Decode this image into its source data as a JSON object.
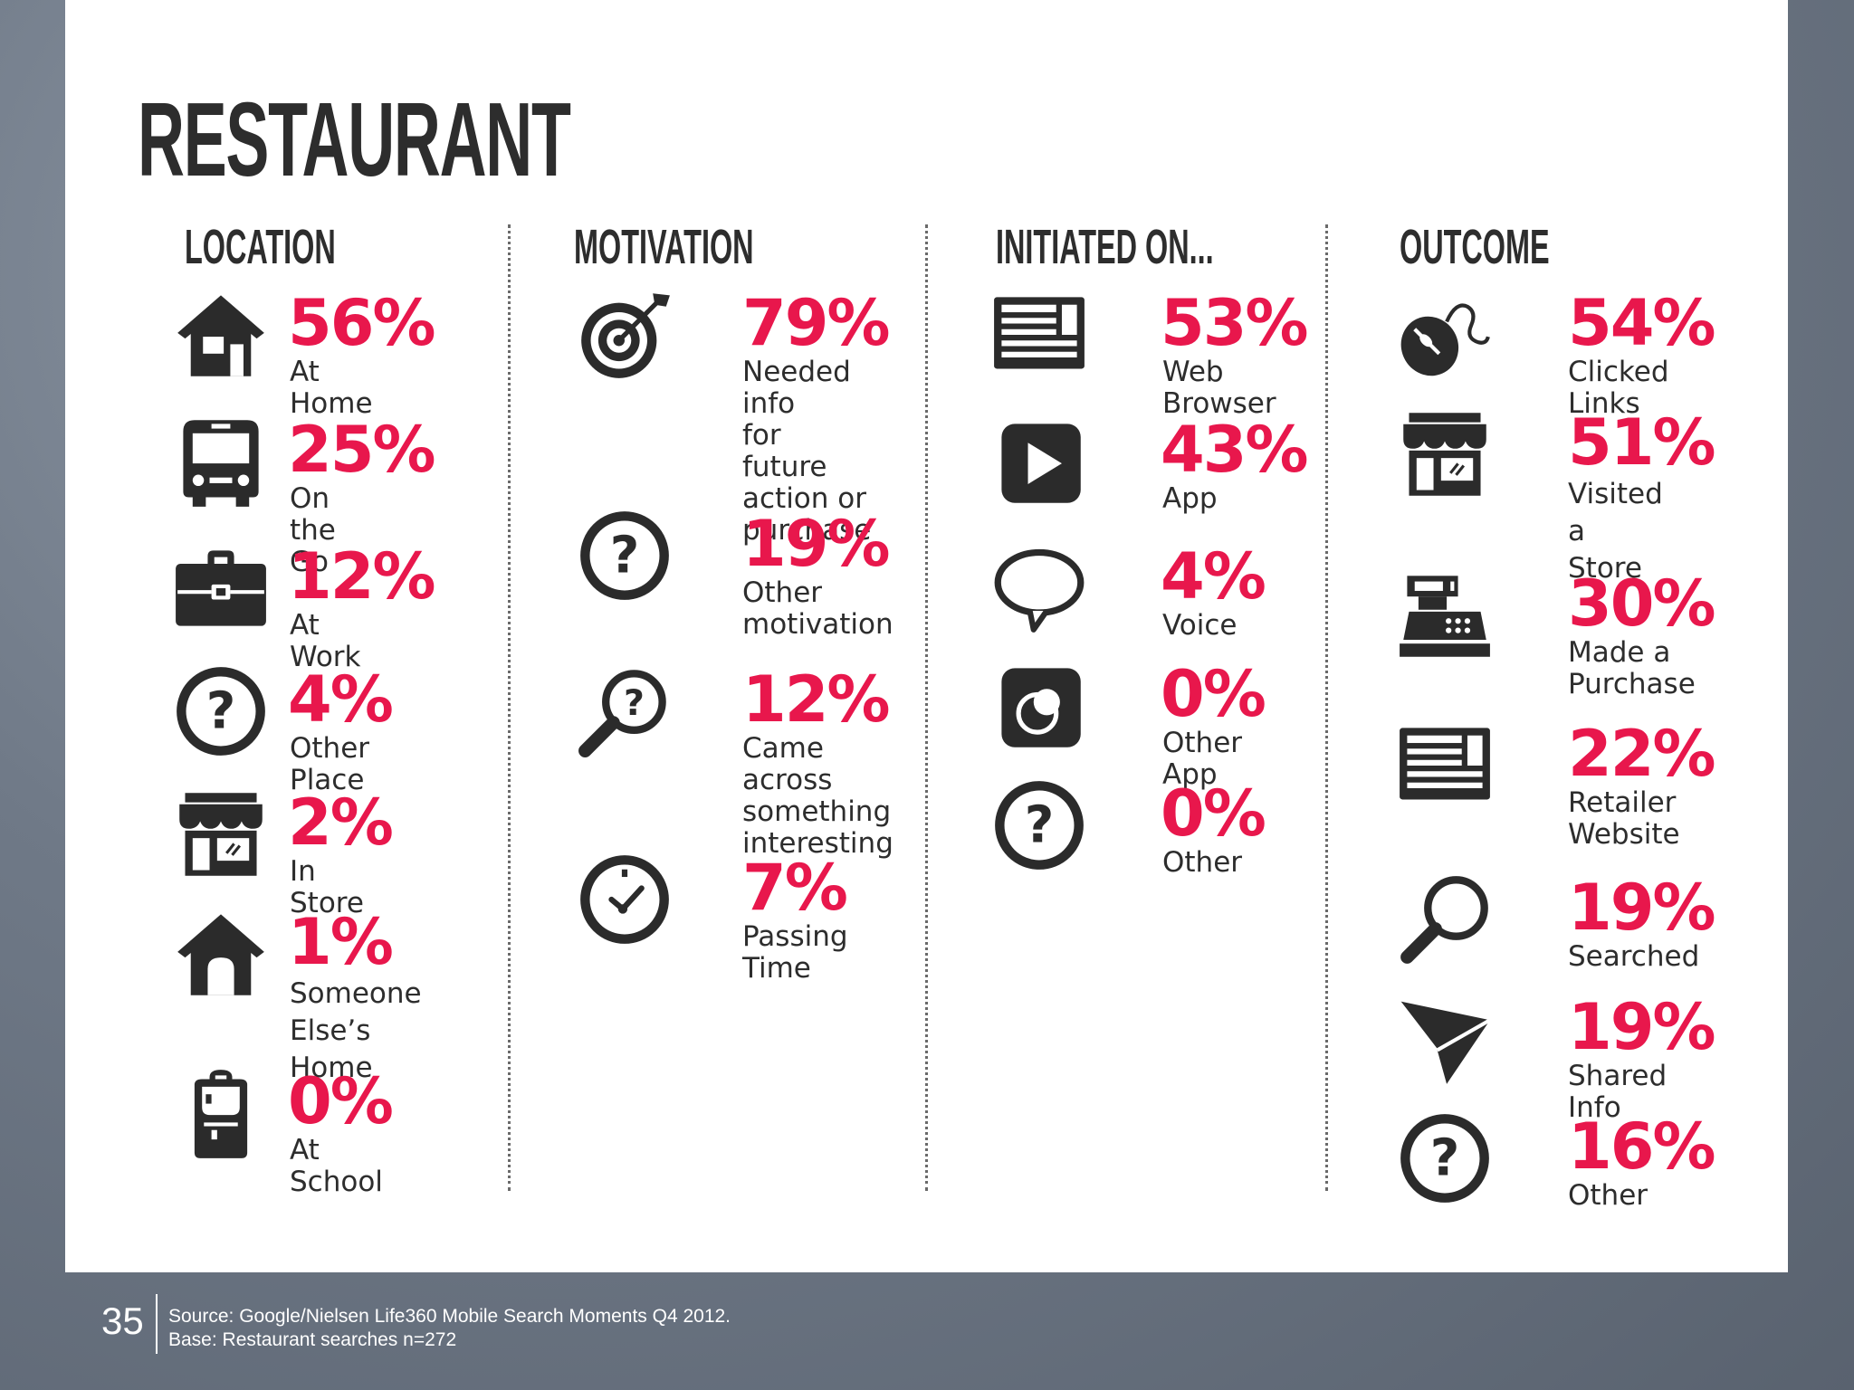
{
  "title": "RESTAURANT",
  "columns": [
    {
      "heading": "LOCATION",
      "items": [
        {
          "pct": "56%",
          "label": "At Home",
          "icon": "house-icon"
        },
        {
          "pct": "25%",
          "label": "On the Go",
          "icon": "bus-icon"
        },
        {
          "pct": "12%",
          "label": "At Work",
          "icon": "briefcase-icon"
        },
        {
          "pct": "4%",
          "label": "Other Place",
          "icon": "question-icon"
        },
        {
          "pct": "2%",
          "label": "In Store",
          "icon": "store-icon"
        },
        {
          "pct": "1%",
          "label": "Someone\nElse’s Home",
          "icon": "home-outline-icon"
        },
        {
          "pct": "0%",
          "label": "At School",
          "icon": "backpack-icon"
        }
      ]
    },
    {
      "heading": "MOTIVATION",
      "items": [
        {
          "pct": "79%",
          "label": "Needed info\nfor future\naction or\npurchase",
          "icon": "target-icon"
        },
        {
          "pct": "19%",
          "label": "Other\nmotivation",
          "icon": "question-icon"
        },
        {
          "pct": "12%",
          "label": "Came across\nsomething\ninteresting",
          "icon": "magnifier-question-icon"
        },
        {
          "pct": "7%",
          "label": "Passing Time",
          "icon": "clock-icon"
        }
      ]
    },
    {
      "heading": "INITIATED ON...",
      "items": [
        {
          "pct": "53%",
          "label": "Web Browser",
          "icon": "browser-icon"
        },
        {
          "pct": "43%",
          "label": "App",
          "icon": "play-app-icon"
        },
        {
          "pct": "4%",
          "label": "Voice",
          "icon": "speech-bubble-icon"
        },
        {
          "pct": "0%",
          "label": "Other App",
          "icon": "other-app-icon"
        },
        {
          "pct": "0%",
          "label": "Other",
          "icon": "question-icon"
        }
      ]
    },
    {
      "heading": "OUTCOME",
      "items": [
        {
          "pct": "54%",
          "label": "Clicked Links",
          "icon": "mouse-icon"
        },
        {
          "pct": "51%",
          "label": "Visited\na Store",
          "icon": "store-icon"
        },
        {
          "pct": "30%",
          "label": "Made a\nPurchase",
          "icon": "cash-register-icon"
        },
        {
          "pct": "22%",
          "label": "Retailer\nWebsite",
          "icon": "browser-icon"
        },
        {
          "pct": "19%",
          "label": "Searched",
          "icon": "magnifier-icon"
        },
        {
          "pct": "19%",
          "label": "Shared Info",
          "icon": "paper-plane-icon"
        },
        {
          "pct": "16%",
          "label": "Other",
          "icon": "question-icon"
        }
      ]
    }
  ],
  "footer": {
    "page_number": "35",
    "source": "Source: Google/Nielsen Life360 Mobile Search Moments Q4 2012.\nBase: Restaurant searches n=272"
  },
  "colors": {
    "accent": "#e8174c",
    "text": "#2d2d2d",
    "icon": "#2b2b2b"
  }
}
